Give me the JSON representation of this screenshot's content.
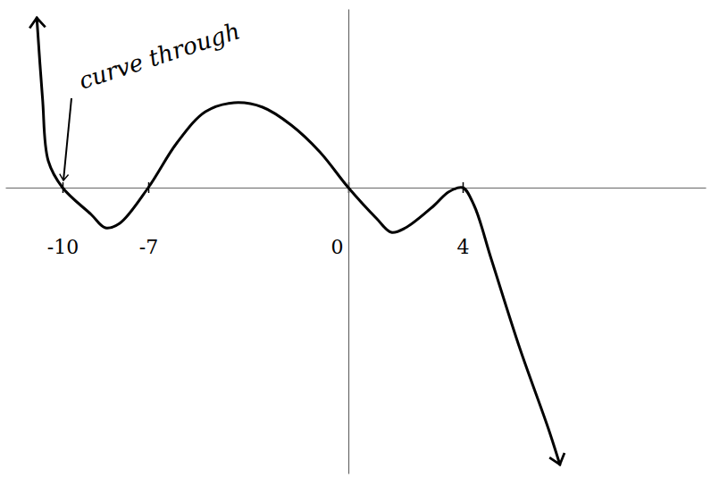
{
  "chart_data": {
    "type": "line",
    "x": [
      -10.9,
      -10.7,
      -10.5,
      -10,
      -9,
      -8.5,
      -8,
      -7,
      -6,
      -5,
      -4,
      -3,
      -2,
      -1,
      0,
      1,
      1.5,
      2,
      3,
      3.5,
      4,
      4.4,
      5,
      6,
      7,
      7.4
    ],
    "values": [
      19,
      10,
      3,
      0,
      -3,
      -4.5,
      -4,
      0,
      5,
      8.5,
      9.5,
      9,
      7,
      4,
      0,
      -3.5,
      -5,
      -4.5,
      -2,
      -0.5,
      0,
      -2,
      -8,
      -18,
      -27,
      -31
    ],
    "color": "#000000",
    "xlim": [
      -12,
      12.5
    ],
    "ylim": [
      -32,
      20
    ],
    "xticks": [
      -10,
      -7,
      0,
      4
    ],
    "tick_labels": "x",
    "grid": false,
    "annotations": [
      {
        "text": "curve through",
        "x": -10,
        "y": 0
      }
    ]
  }
}
